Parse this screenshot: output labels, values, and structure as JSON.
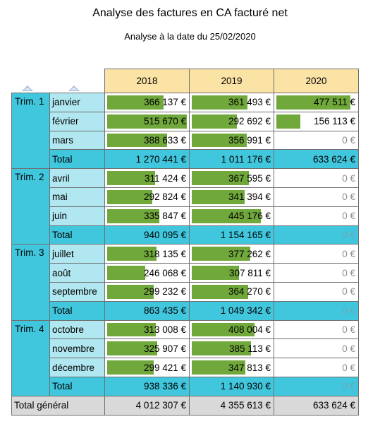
{
  "title": "Analyse des factures en CA facturé net",
  "subtitle": "Analyse à la date du 25/02/2020",
  "years": [
    "2018",
    "2019",
    "2020"
  ],
  "bar_max": 520000,
  "quarters": [
    {
      "label": "Trim. 1",
      "months": [
        {
          "name": "janvier",
          "values": [
            366137,
            361493,
            477511
          ],
          "labels": [
            "366 137 €",
            "361 493 €",
            "477 511 €"
          ]
        },
        {
          "name": "février",
          "values": [
            515670,
            292692,
            156113
          ],
          "labels": [
            "515 670 €",
            "292 692 €",
            "156 113 €"
          ]
        },
        {
          "name": "mars",
          "values": [
            388633,
            356991,
            0
          ],
          "labels": [
            "388 633 €",
            "356 991 €",
            "0 €"
          ]
        }
      ],
      "total_label": "Total",
      "totals": [
        "1 270 441 €",
        "1 011 176 €",
        "633 624 €"
      ]
    },
    {
      "label": "Trim. 2",
      "months": [
        {
          "name": "avril",
          "values": [
            311424,
            367595,
            0
          ],
          "labels": [
            "311 424 €",
            "367 595 €",
            "0 €"
          ]
        },
        {
          "name": "mai",
          "values": [
            292824,
            341394,
            0
          ],
          "labels": [
            "292 824 €",
            "341 394 €",
            "0 €"
          ]
        },
        {
          "name": "juin",
          "values": [
            335847,
            445176,
            0
          ],
          "labels": [
            "335 847 €",
            "445 176 €",
            "0 €"
          ]
        }
      ],
      "total_label": "Total",
      "totals": [
        "940 095 €",
        "1 154 165 €",
        "0 €"
      ]
    },
    {
      "label": "Trim. 3",
      "months": [
        {
          "name": "juillet",
          "values": [
            318135,
            377262,
            0
          ],
          "labels": [
            "318 135 €",
            "377 262 €",
            "0 €"
          ]
        },
        {
          "name": "août",
          "values": [
            246068,
            307811,
            0
          ],
          "labels": [
            "246 068 €",
            "307 811 €",
            "0 €"
          ]
        },
        {
          "name": "septembre",
          "values": [
            299232,
            364270,
            0
          ],
          "labels": [
            "299 232 €",
            "364 270 €",
            "0 €"
          ]
        }
      ],
      "total_label": "Total",
      "totals": [
        "863 435 €",
        "1 049 342 €",
        "0 €"
      ]
    },
    {
      "label": "Trim. 4",
      "months": [
        {
          "name": "octobre",
          "values": [
            313008,
            408004,
            0
          ],
          "labels": [
            "313 008 €",
            "408 004 €",
            "0 €"
          ]
        },
        {
          "name": "novembre",
          "values": [
            325907,
            385113,
            0
          ],
          "labels": [
            "325 907 €",
            "385 113 €",
            "0 €"
          ]
        },
        {
          "name": "décembre",
          "values": [
            299421,
            347813,
            0
          ],
          "labels": [
            "299 421 €",
            "347 813 €",
            "0 €"
          ]
        }
      ],
      "total_label": "Total",
      "totals": [
        "938 336 €",
        "1 140 930 €",
        "0 €"
      ]
    }
  ],
  "grand_total": {
    "label": "Total général",
    "values": [
      "4 012 307 €",
      "4 355 613 €",
      "633 624 €"
    ]
  },
  "colors": {
    "header": "#fbe3a6",
    "quarter": "#41c7dd",
    "month": "#b1e7f0",
    "bar": "#70a83b",
    "grand_total": "#d9d9d9"
  },
  "icons": {
    "sort_quarter": "sort-triangle-icon",
    "sort_month": "sort-triangle-icon"
  }
}
